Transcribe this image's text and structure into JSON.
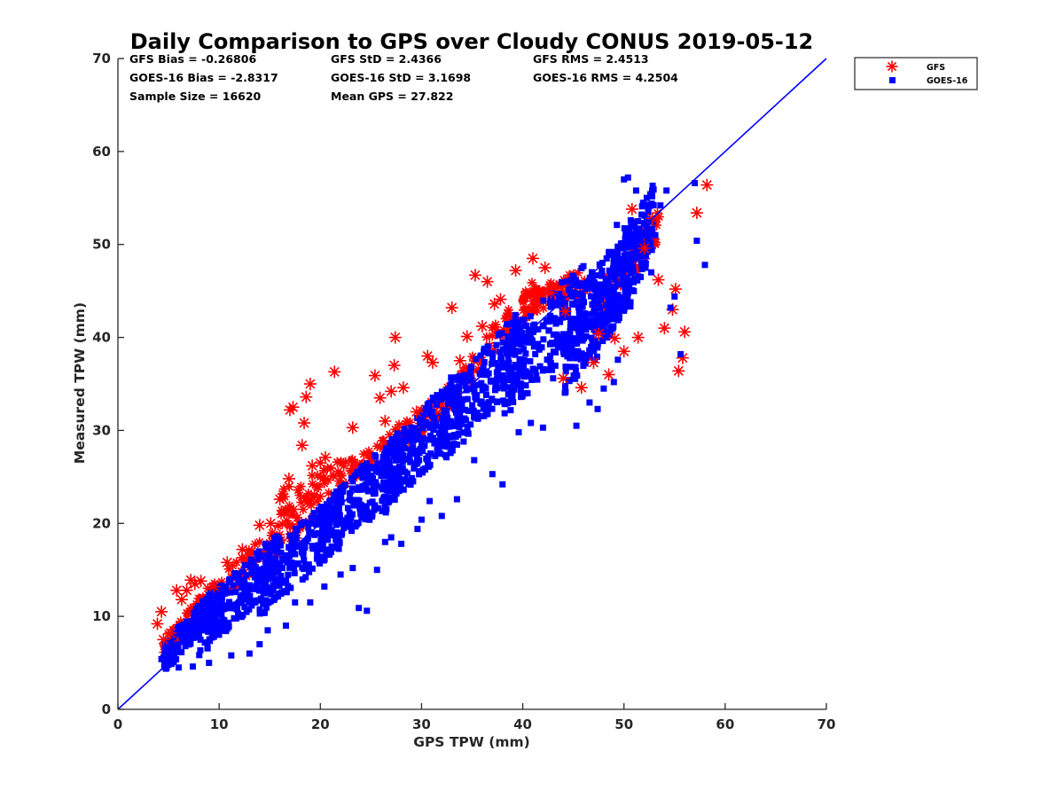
{
  "chart_data": {
    "type": "scatter",
    "title": "Daily Comparison to GPS over Cloudy CONUS 2019-05-12",
    "xlabel": "GPS TPW (mm)",
    "ylabel": "Measured TPW (mm)",
    "xlim": [
      0,
      70
    ],
    "ylim": [
      0,
      70
    ],
    "xticks": [
      "0",
      "10",
      "20",
      "30",
      "40",
      "50",
      "60",
      "70"
    ],
    "yticks": [
      "0",
      "10",
      "20",
      "30",
      "40",
      "50",
      "60",
      "70"
    ],
    "grid": false,
    "legend_position": "top-right, outside plot",
    "stats": [
      [
        "GFS Bias = -0.26806",
        "GFS StD = 2.4366",
        "GFS RMS = 2.4513"
      ],
      [
        "GOES-16 Bias = -2.8317",
        "GOES-16 StD = 3.1698",
        "GOES-16 RMS = 4.2504"
      ],
      [
        "Sample Size = 16620",
        "Mean GPS = 27.822"
      ]
    ],
    "reference_line": {
      "x": [
        0,
        70
      ],
      "y": [
        0,
        70
      ],
      "color": "#0000ff"
    },
    "series": [
      {
        "name": "GFS",
        "marker": "asterisk",
        "color": "#ff0000",
        "x": [
          3.9,
          4.3,
          4.5,
          5.2,
          5.8,
          6.3,
          6.8,
          7.2,
          7.6,
          8.2,
          9.5,
          10.8,
          12.3,
          14.0,
          15.1,
          16.0,
          16.9,
          17.0,
          17.3,
          18.2,
          18.4,
          18.6,
          19.0,
          19.2,
          20.0,
          20.5,
          21.4,
          23.2,
          25.4,
          25.9,
          26.4,
          27.0,
          27.3,
          27.4,
          28.2,
          29.5,
          30.6,
          33.0,
          33.8,
          35.3,
          36.0,
          36.5,
          37.8,
          39.3,
          41.0,
          42.2,
          44.0,
          45.8,
          47.0,
          48.5,
          49.1,
          50.0,
          50.8,
          51.4,
          52.0,
          52.8,
          53.4,
          54.0,
          54.8,
          55.1,
          55.4,
          55.8,
          56.0,
          57.2,
          58.2,
          47.5,
          44.2,
          42.8,
          34.5,
          31.1,
          37.2
        ],
        "y": [
          9.2,
          10.5,
          7.5,
          8.2,
          12.8,
          11.8,
          12.8,
          13.9,
          13.5,
          13.8,
          13.2,
          15.8,
          17.2,
          19.8,
          20.0,
          22.6,
          24.8,
          32.2,
          32.5,
          28.4,
          30.8,
          33.6,
          35.0,
          26.2,
          26.5,
          27.1,
          36.3,
          30.3,
          35.9,
          33.5,
          31.0,
          34.2,
          37.0,
          40.0,
          34.6,
          32.0,
          38.0,
          43.2,
          37.5,
          46.7,
          41.2,
          46.0,
          44.1,
          47.2,
          48.5,
          47.5,
          35.6,
          34.6,
          37.3,
          36.0,
          39.9,
          38.5,
          53.8,
          40.0,
          49.6,
          52.8,
          46.2,
          41.0,
          43.0,
          45.2,
          36.4,
          37.8,
          40.6,
          53.4,
          56.4,
          40.4,
          42.8,
          44.8,
          40.1,
          37.3,
          43.6
        ],
        "dense_cloud": [
          {
            "x": [
              4.5,
              10.0
            ],
            "y": [
              6.5,
              13.2
            ],
            "width": 2.4
          },
          {
            "x": [
              10.0,
              20.0
            ],
            "y": [
              13.0,
              22.0
            ],
            "width": 3.2
          },
          {
            "x": [
              16.0,
              25.0
            ],
            "y": [
              22.0,
              27.0
            ],
            "width": 3.0
          },
          {
            "x": [
              25.0,
              33.5
            ],
            "y": [
              27.0,
              34.0
            ],
            "width": 2.8
          },
          {
            "x": [
              33.0,
              41.0
            ],
            "y": [
              34.5,
              44.5
            ],
            "width": 3.2
          },
          {
            "x": [
              41.0,
              47.0
            ],
            "y": [
              44.0,
              46.5
            ],
            "width": 2.8
          },
          {
            "x": [
              47.0,
              53.5
            ],
            "y": [
              43.0,
              52.0
            ],
            "width": 3.6
          }
        ]
      },
      {
        "name": "GOES-16",
        "marker": "square",
        "color": "#0000ff",
        "x": [
          4.3,
          5.0,
          6.0,
          7.4,
          9.0,
          11.2,
          13.0,
          14.0,
          14.8,
          16.6,
          17.5,
          19.0,
          20.4,
          22.0,
          23.2,
          23.8,
          24.6,
          25.6,
          26.4,
          27.0,
          28.0,
          29.6,
          30.0,
          30.8,
          32.0,
          33.5,
          35.2,
          37.0,
          38.0,
          39.6,
          40.8,
          42.0,
          43.0,
          45.3,
          46.6,
          47.4,
          48.0,
          49.0,
          49.4,
          50.0,
          50.4,
          51.2,
          52.6,
          53.6,
          54.2,
          55.0,
          55.6,
          57.0,
          57.2,
          58.0,
          54.6,
          49.3,
          51.5,
          52.7,
          53.1
        ],
        "y": [
          5.4,
          4.8,
          4.5,
          4.6,
          5.0,
          5.8,
          6.0,
          7.0,
          8.5,
          9.0,
          11.5,
          11.5,
          13.2,
          14.5,
          15.2,
          10.9,
          10.6,
          15.0,
          18.0,
          18.5,
          17.8,
          19.4,
          20.4,
          22.4,
          20.8,
          22.6,
          26.8,
          25.3,
          24.2,
          29.8,
          30.8,
          30.3,
          35.6,
          30.5,
          33.0,
          32.3,
          34.5,
          35.2,
          37.6,
          57.0,
          57.2,
          55.8,
          55.4,
          54.2,
          55.8,
          44.4,
          38.2,
          56.6,
          50.4,
          47.8,
          43.2,
          52.1,
          51.2,
          47.0,
          51.0
        ],
        "dense_cloud": [
          {
            "x": [
              4.5,
              10.0
            ],
            "y": [
              5.5,
              12.0
            ],
            "width": 3.2
          },
          {
            "x": [
              8.0,
              16.0
            ],
            "y": [
              8.5,
              16.5
            ],
            "width": 5.6
          },
          {
            "x": [
              14.0,
              22.0
            ],
            "y": [
              13.0,
              20.5
            ],
            "width": 6.2
          },
          {
            "x": [
              20.0,
              28.0
            ],
            "y": [
              18.5,
              27.0
            ],
            "width": 6.6
          },
          {
            "x": [
              26.0,
              34.0
            ],
            "y": [
              24.0,
              33.5
            ],
            "width": 7.0
          },
          {
            "x": [
              32.0,
              40.0
            ],
            "y": [
              30.0,
              39.5
            ],
            "width": 7.6
          },
          {
            "x": [
              38.0,
              46.0
            ],
            "y": [
              35.5,
              44.0
            ],
            "width": 8.4
          },
          {
            "x": [
              44.0,
              51.0
            ],
            "y": [
              38.5,
              48.5
            ],
            "width": 9.4
          },
          {
            "x": [
              47.0,
              53.0
            ],
            "y": [
              41.0,
              53.0
            ],
            "width": 8.0
          }
        ]
      }
    ]
  }
}
